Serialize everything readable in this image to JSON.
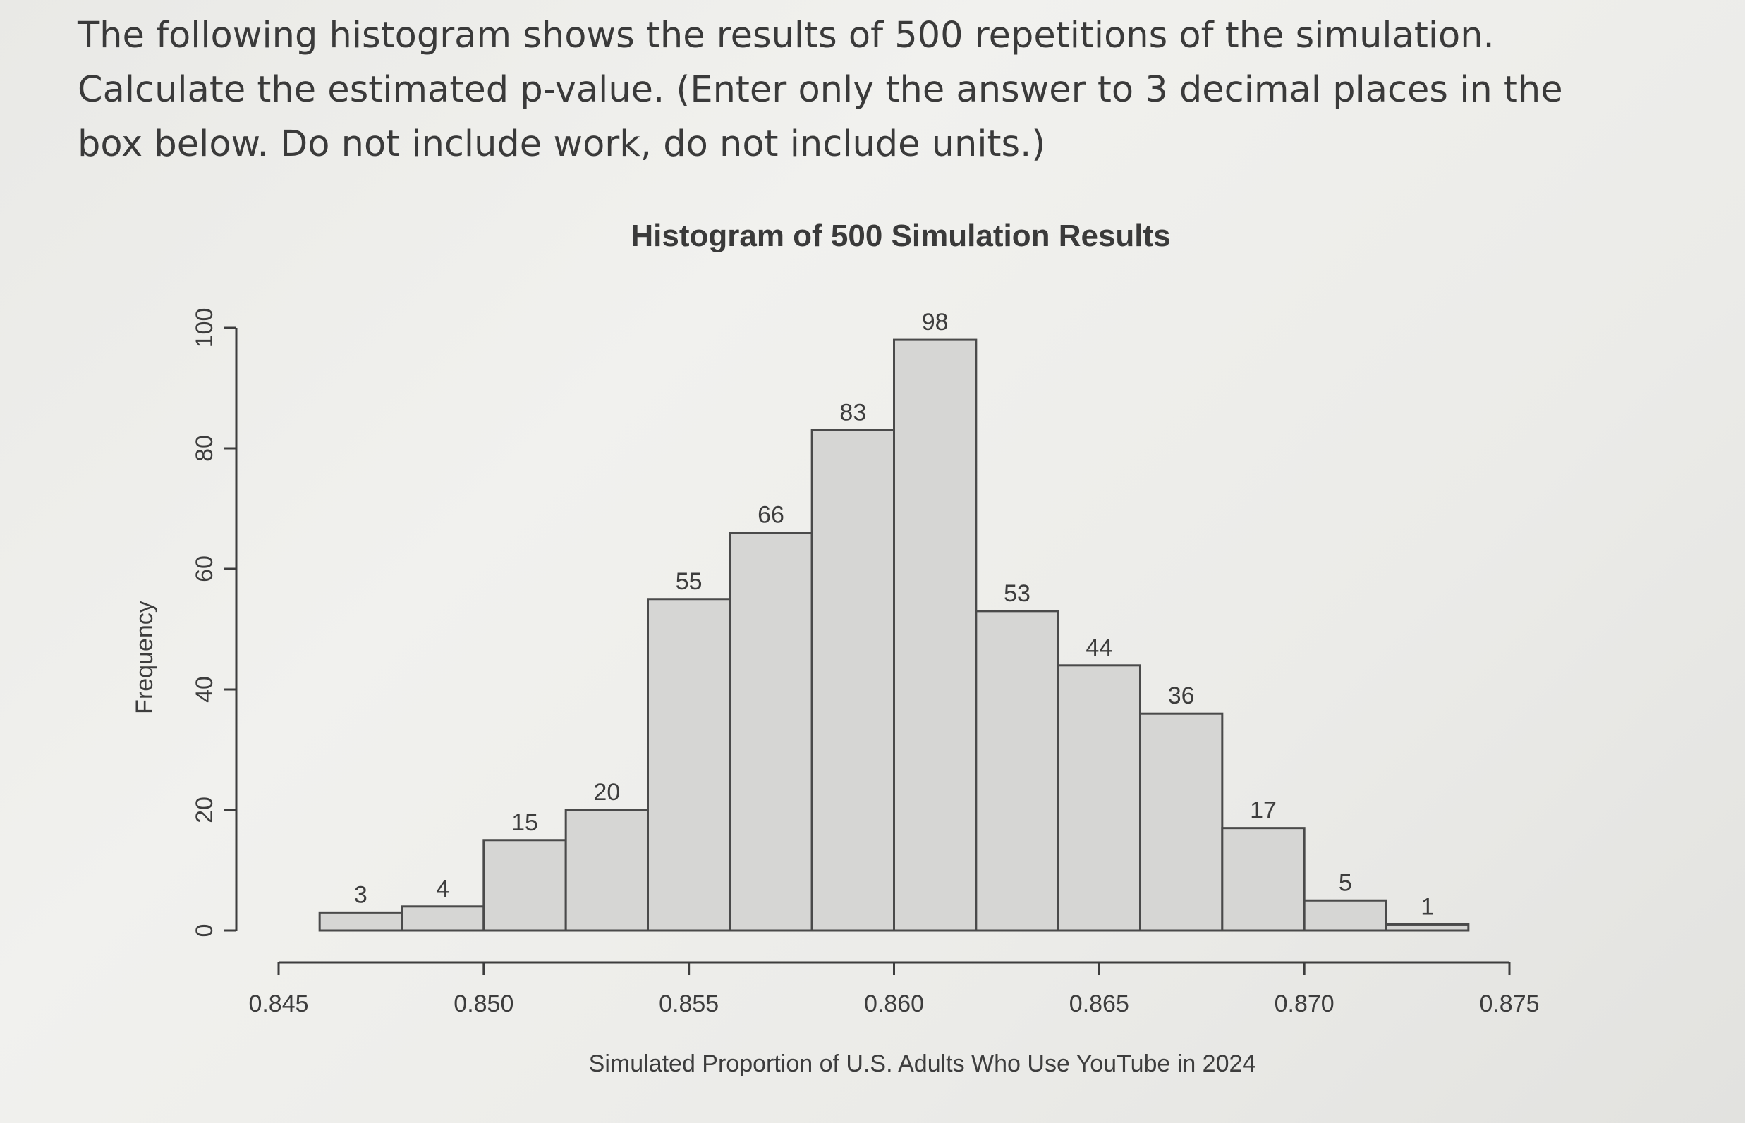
{
  "question": {
    "text": "The following histogram shows the results of 500 repetitions of the simulation. Calculate the estimated p-value. (Enter only the answer to 3 decimal places in the box below. Do not include work, do not include units.)"
  },
  "chart_data": {
    "type": "bar",
    "title": "Histogram of 500 Simulation Results",
    "xlabel": "Simulated Proportion of U.S. Adults Who Use YouTube in 2024",
    "ylabel": "Frequency",
    "bin_edges": [
      0.846,
      0.848,
      0.85,
      0.852,
      0.854,
      0.856,
      0.858,
      0.86,
      0.862,
      0.864,
      0.866,
      0.868,
      0.87,
      0.872,
      0.874
    ],
    "values": [
      3,
      4,
      15,
      20,
      55,
      66,
      83,
      98,
      53,
      44,
      36,
      17,
      5,
      1
    ],
    "value_labels": [
      "3",
      "4",
      "15",
      "20",
      "55",
      "66",
      "83",
      "98",
      "53",
      "44",
      "36",
      "17",
      "5",
      "1"
    ],
    "x_ticks": [
      "0.845",
      "0.850",
      "0.855",
      "0.860",
      "0.865",
      "0.870",
      "0.875"
    ],
    "x_tick_values": [
      0.845,
      0.85,
      0.855,
      0.86,
      0.865,
      0.87,
      0.875
    ],
    "y_ticks": [
      "0",
      "20",
      "40",
      "60",
      "80",
      "100"
    ],
    "y_tick_values": [
      0,
      20,
      40,
      60,
      80,
      100
    ],
    "xlim": [
      0.845,
      0.875
    ],
    "ylim": [
      0,
      100
    ],
    "bar_color": "#d6d6d4",
    "bar_stroke": "#4a4a4a"
  }
}
